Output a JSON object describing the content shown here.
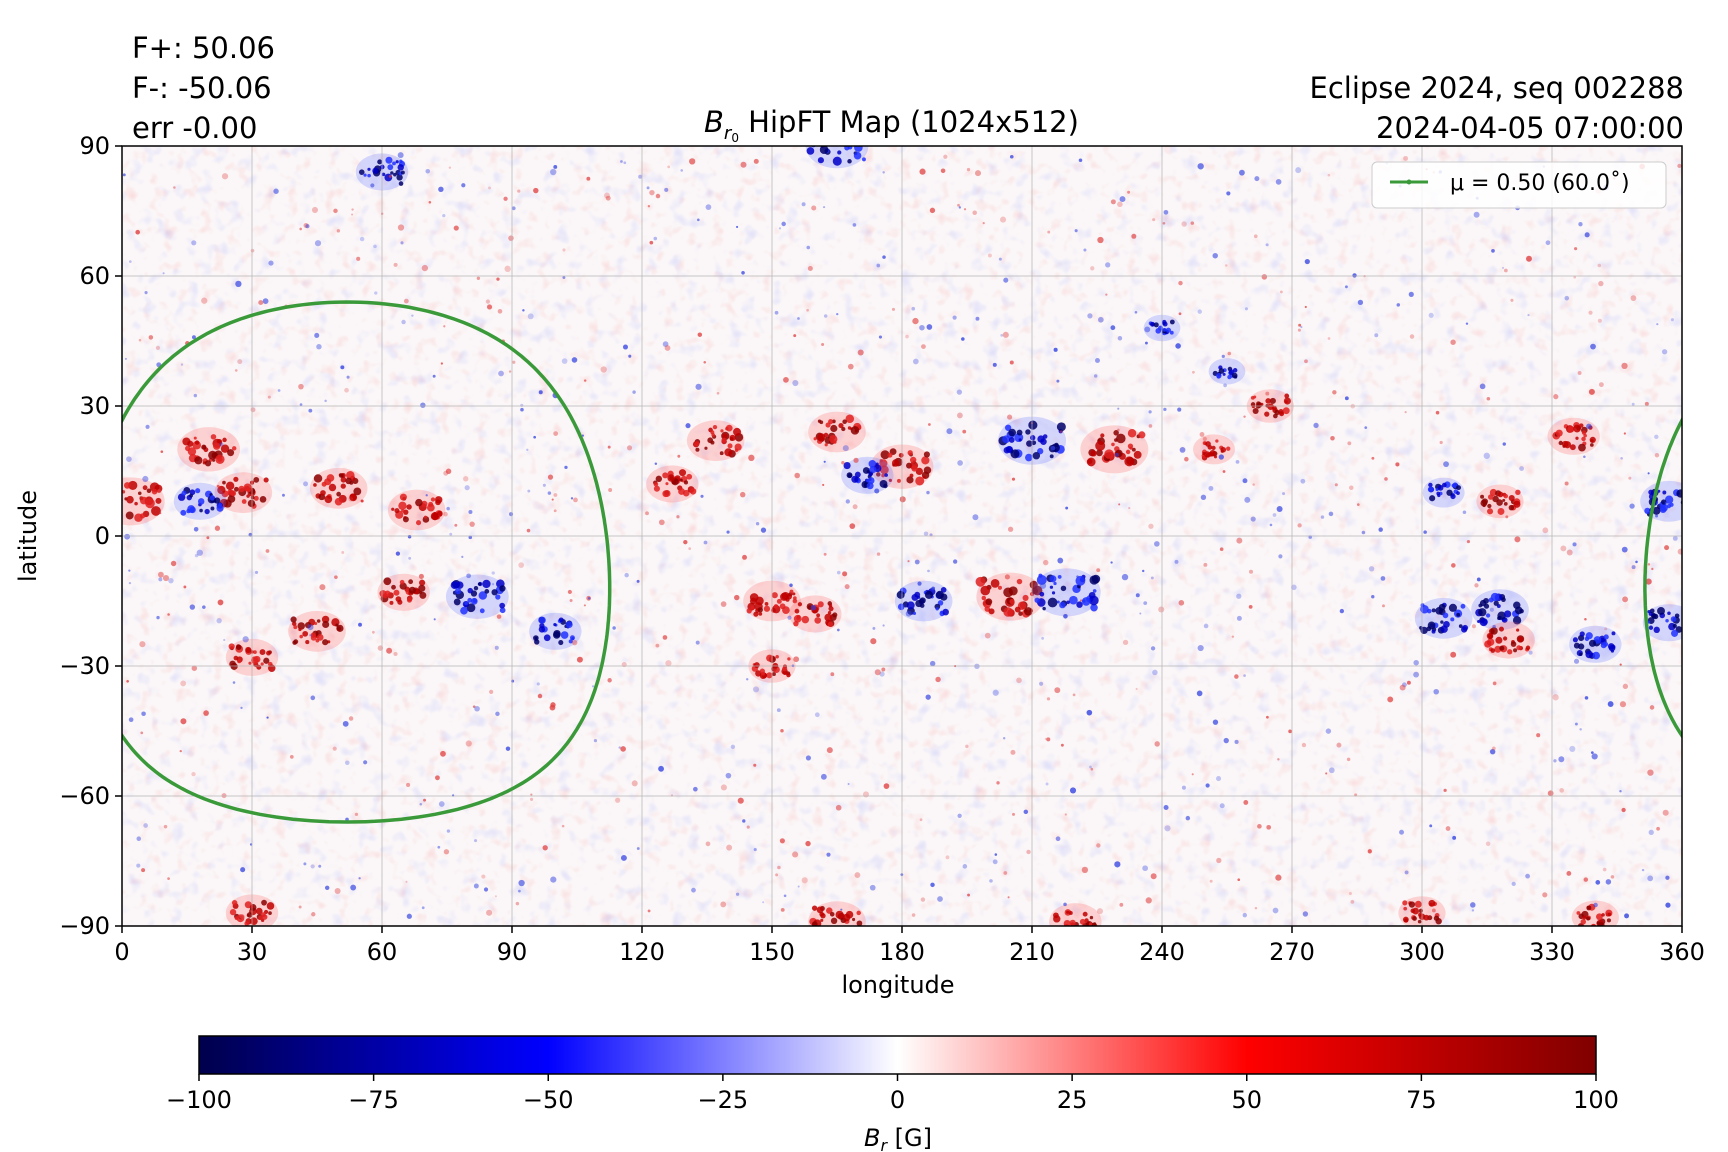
{
  "annotations": {
    "flux_pos": "F+: 50.06",
    "flux_neg": "F-: -50.06",
    "error": "err -0.00",
    "run_info": "Eclipse 2024, seq 002288",
    "date": "2024-04-05 07:00:00"
  },
  "chart_data": {
    "type": "heatmap",
    "title_symbol": "B",
    "title_subscript": "r",
    "title_subsubscript": "0",
    "title_text": " HipFT Map (1024x512)",
    "xlabel": "longitude",
    "ylabel": "latitude",
    "xlim": [
      0,
      360
    ],
    "ylim": [
      -90,
      90
    ],
    "xticks": [
      0,
      30,
      60,
      90,
      120,
      150,
      180,
      210,
      240,
      270,
      300,
      330,
      360
    ],
    "yticks": [
      -90,
      -60,
      -30,
      0,
      30,
      60,
      90
    ],
    "ytick_labels": [
      "−90",
      "−60",
      "−30",
      "0",
      "30",
      "60",
      "90"
    ],
    "grid": true,
    "legend_position": "top-right",
    "legend_label": "μ = 0.50 (60.0˚)",
    "contour": {
      "label": "μ = 0.50 (60.0˚)",
      "color": "#3a9a3a",
      "mu": 0.5,
      "angle_deg": 60.0,
      "center_lon": 52,
      "center_lat": -6
    },
    "colorbar": {
      "label_symbol": "B",
      "label_subscript": "r",
      "label_unit": " [G]",
      "range": [
        -100,
        100
      ],
      "ticks": [
        -100,
        -75,
        -50,
        -25,
        0,
        25,
        50,
        75,
        100
      ],
      "tick_labels": [
        "−100",
        "−75",
        "−50",
        "−25",
        "0",
        "25",
        "50",
        "75",
        "100"
      ],
      "colormap": "seismic",
      "colors": [
        "#00004c",
        "#0000ff",
        "#ffffff",
        "#ff0000",
        "#800000"
      ]
    },
    "active_regions": [
      {
        "lon": 20,
        "lat": 20,
        "polarity": 1,
        "strength": 0.9
      },
      {
        "lon": 28,
        "lat": 10,
        "polarity": 1,
        "strength": 0.8
      },
      {
        "lon": 18,
        "lat": 8,
        "polarity": -1,
        "strength": 0.7
      },
      {
        "lon": 2,
        "lat": 8,
        "polarity": 1,
        "strength": 1.0
      },
      {
        "lon": 50,
        "lat": 11,
        "polarity": 1,
        "strength": 0.8
      },
      {
        "lon": 68,
        "lat": 6,
        "polarity": 1,
        "strength": 0.8
      },
      {
        "lon": 45,
        "lat": -22,
        "polarity": 1,
        "strength": 0.8
      },
      {
        "lon": 30,
        "lat": -28,
        "polarity": 1,
        "strength": 0.7
      },
      {
        "lon": 65,
        "lat": -13,
        "polarity": 1,
        "strength": 0.7
      },
      {
        "lon": 82,
        "lat": -14,
        "polarity": -1,
        "strength": 0.9
      },
      {
        "lon": 100,
        "lat": -22,
        "polarity": -1,
        "strength": 0.7
      },
      {
        "lon": 137,
        "lat": 22,
        "polarity": 1,
        "strength": 0.8
      },
      {
        "lon": 127,
        "lat": 12,
        "polarity": 1,
        "strength": 0.7
      },
      {
        "lon": 165,
        "lat": 24,
        "polarity": 1,
        "strength": 0.8
      },
      {
        "lon": 180,
        "lat": 16,
        "polarity": 1,
        "strength": 0.9
      },
      {
        "lon": 172,
        "lat": 14,
        "polarity": -1,
        "strength": 0.7
      },
      {
        "lon": 210,
        "lat": 22,
        "polarity": -1,
        "strength": 1.0
      },
      {
        "lon": 229,
        "lat": 20,
        "polarity": 1,
        "strength": 1.0
      },
      {
        "lon": 205,
        "lat": -14,
        "polarity": 1,
        "strength": 1.0
      },
      {
        "lon": 218,
        "lat": -13,
        "polarity": -1,
        "strength": 1.0
      },
      {
        "lon": 150,
        "lat": -15,
        "polarity": 1,
        "strength": 0.8
      },
      {
        "lon": 160,
        "lat": -18,
        "polarity": 1,
        "strength": 0.7
      },
      {
        "lon": 185,
        "lat": -15,
        "polarity": -1,
        "strength": 0.8
      },
      {
        "lon": 150,
        "lat": -30,
        "polarity": 1,
        "strength": 0.6
      },
      {
        "lon": 265,
        "lat": 30,
        "polarity": 1,
        "strength": 0.6
      },
      {
        "lon": 252,
        "lat": 20,
        "polarity": 1,
        "strength": 0.5
      },
      {
        "lon": 305,
        "lat": -19,
        "polarity": -1,
        "strength": 0.8
      },
      {
        "lon": 318,
        "lat": -17,
        "polarity": -1,
        "strength": 0.8
      },
      {
        "lon": 320,
        "lat": -24,
        "polarity": 1,
        "strength": 0.7
      },
      {
        "lon": 335,
        "lat": 23,
        "polarity": 1,
        "strength": 0.7
      },
      {
        "lon": 318,
        "lat": 8,
        "polarity": 1,
        "strength": 0.6
      },
      {
        "lon": 305,
        "lat": 10,
        "polarity": -1,
        "strength": 0.5
      },
      {
        "lon": 340,
        "lat": -25,
        "polarity": -1,
        "strength": 0.7
      },
      {
        "lon": 357,
        "lat": 8,
        "polarity": -1,
        "strength": 0.8
      },
      {
        "lon": 357,
        "lat": -20,
        "polarity": -1,
        "strength": 0.7
      },
      {
        "lon": 240,
        "lat": 48,
        "polarity": -1,
        "strength": 0.4
      },
      {
        "lon": 255,
        "lat": 38,
        "polarity": -1,
        "strength": 0.4
      },
      {
        "lon": 165,
        "lat": 90,
        "polarity": -1,
        "strength": 0.9
      },
      {
        "lon": 60,
        "lat": 84,
        "polarity": -1,
        "strength": 0.7
      },
      {
        "lon": 165,
        "lat": -89,
        "polarity": 1,
        "strength": 0.8
      },
      {
        "lon": 220,
        "lat": -89,
        "polarity": 1,
        "strength": 0.7
      },
      {
        "lon": 30,
        "lat": -87,
        "polarity": 1,
        "strength": 0.7
      },
      {
        "lon": 300,
        "lat": -87,
        "polarity": 1,
        "strength": 0.6
      },
      {
        "lon": 340,
        "lat": -88,
        "polarity": 1,
        "strength": 0.6
      }
    ]
  }
}
